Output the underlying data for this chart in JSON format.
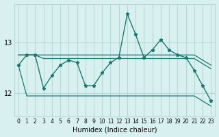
{
  "xlabel": "Humidex (Indice chaleur)",
  "bg_color": "#d8f0f0",
  "grid_color": "#b8d8d8",
  "line_color": "#1a7870",
  "x_values": [
    0,
    1,
    2,
    3,
    4,
    5,
    6,
    7,
    8,
    9,
    10,
    11,
    12,
    13,
    14,
    15,
    16,
    17,
    18,
    19,
    20,
    21,
    22,
    23
  ],
  "y_main": [
    12.55,
    12.75,
    12.75,
    12.1,
    12.35,
    12.55,
    12.65,
    12.6,
    12.15,
    12.15,
    12.4,
    12.6,
    12.7,
    13.55,
    13.15,
    12.7,
    12.85,
    13.05,
    12.85,
    12.75,
    12.7,
    12.45,
    12.15,
    11.85
  ],
  "y_top": [
    12.75,
    12.75,
    12.75,
    12.75,
    12.75,
    12.75,
    12.75,
    12.75,
    12.75,
    12.75,
    12.75,
    12.75,
    12.75,
    12.75,
    12.75,
    12.75,
    12.75,
    12.75,
    12.75,
    12.75,
    12.75,
    12.75,
    12.65,
    12.55
  ],
  "y_mid": [
    12.75,
    12.75,
    12.75,
    12.68,
    12.68,
    12.68,
    12.68,
    12.68,
    12.68,
    12.68,
    12.68,
    12.68,
    12.68,
    12.68,
    12.68,
    12.68,
    12.68,
    12.68,
    12.68,
    12.68,
    12.68,
    12.68,
    12.58,
    12.48
  ],
  "y_bot": [
    12.55,
    11.95,
    11.95,
    11.95,
    11.95,
    11.95,
    11.95,
    11.95,
    11.95,
    11.95,
    11.95,
    11.95,
    11.95,
    11.95,
    11.95,
    11.95,
    11.95,
    11.95,
    11.95,
    11.95,
    11.95,
    11.95,
    11.85,
    11.75
  ],
  "yticks": [
    12,
    13
  ],
  "ylim": [
    11.55,
    13.75
  ],
  "xlim": [
    -0.5,
    23.5
  ],
  "title_fontsize": 7,
  "xlabel_fontsize": 7,
  "tick_fontsize": 5.5,
  "ytick_fontsize": 7
}
